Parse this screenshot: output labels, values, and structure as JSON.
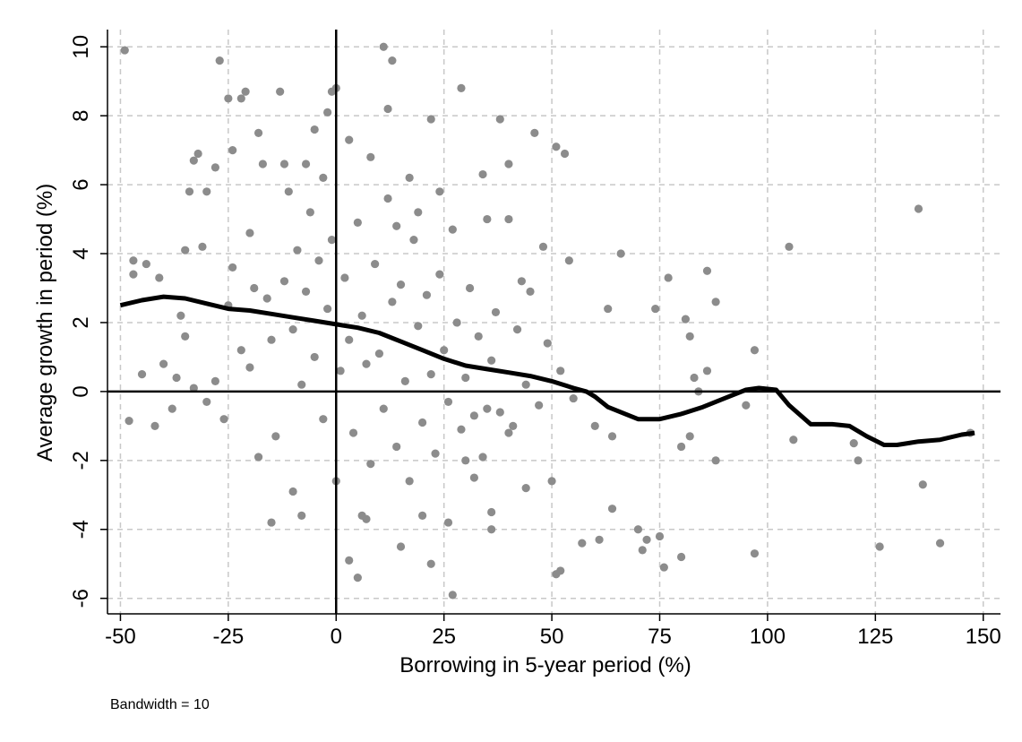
{
  "chart_data": {
    "type": "scatter",
    "x_label": "Borrowing in 5-year period (%)",
    "y_label": "Average growth in period (%)",
    "note": "Bandwidth = 10",
    "xlim": [
      -53,
      154
    ],
    "ylim": [
      -6.45,
      10.5
    ],
    "xticks": [
      -50,
      -25,
      0,
      25,
      50,
      75,
      100,
      125,
      150
    ],
    "yticks": [
      -6,
      -4,
      -2,
      0,
      2,
      4,
      6,
      8,
      10
    ],
    "grid": true,
    "xline": 0,
    "yline": 0,
    "points": {
      "color": "#8c8c8c",
      "x": [
        -49,
        -48,
        -47,
        -47,
        -45,
        -44,
        -42,
        -41,
        -38,
        -37,
        -36,
        -35,
        -34,
        -33,
        -32,
        -31,
        -30,
        -28,
        -27,
        -25,
        -24,
        -22,
        -21,
        -20,
        -18,
        -17,
        -16,
        -15,
        -13,
        -12,
        -10,
        -8,
        -7,
        -5,
        -2,
        -1,
        0,
        0,
        3,
        5,
        6,
        7,
        11,
        12,
        13,
        15,
        17,
        20,
        22,
        22,
        26,
        27,
        29,
        32,
        34,
        35,
        36,
        36,
        38,
        40,
        40,
        44,
        46,
        48,
        50,
        51,
        51,
        52,
        53,
        54,
        57,
        60,
        61,
        63,
        64,
        64,
        66,
        70,
        71,
        72,
        74,
        75,
        76,
        77,
        80,
        80,
        81,
        82,
        82,
        83,
        84,
        86,
        86,
        88,
        88,
        95,
        97,
        97,
        105,
        106,
        120,
        121,
        126,
        135,
        136,
        140,
        147,
        -25,
        -22,
        -20,
        -18,
        -15,
        -12,
        -10,
        -9,
        -8,
        -7,
        -6,
        -5,
        -4,
        -3,
        -2,
        -1,
        1,
        2,
        3,
        4,
        5,
        6,
        7,
        8,
        9,
        10,
        11,
        12,
        13,
        14,
        15,
        16,
        17,
        18,
        19,
        20,
        21,
        22,
        23,
        24,
        25,
        26,
        27,
        28,
        29,
        30,
        31,
        32,
        33,
        34,
        36,
        37,
        38,
        40,
        42,
        44,
        45,
        47,
        49,
        52,
        55,
        -30,
        -28,
        -35,
        -40,
        -33,
        -26,
        -24,
        -19,
        -14,
        -11,
        -3,
        3,
        8,
        14,
        19,
        24,
        30,
        35,
        41,
        43
      ],
      "y": [
        9.9,
        -0.85,
        3.8,
        3.4,
        0.5,
        3.7,
        -1.0,
        3.3,
        -0.5,
        0.4,
        2.2,
        1.6,
        5.8,
        6.7,
        6.9,
        4.2,
        5.8,
        6.5,
        9.6,
        8.5,
        7.0,
        8.5,
        8.7,
        4.6,
        7.5,
        6.6,
        2.7,
        -3.8,
        8.7,
        6.6,
        -2.9,
        -3.6,
        6.6,
        7.6,
        8.1,
        8.7,
        8.8,
        -2.6,
        -4.9,
        -5.4,
        -3.6,
        -3.7,
        10.0,
        8.2,
        9.6,
        -4.5,
        6.2,
        -3.6,
        -5.0,
        7.9,
        -3.8,
        -5.9,
        8.8,
        -2.5,
        6.3,
        5.0,
        -3.5,
        -4.0,
        7.9,
        6.6,
        5.0,
        -2.8,
        7.5,
        4.2,
        -2.6,
        7.1,
        -5.3,
        -5.2,
        6.9,
        3.8,
        -4.4,
        -1.0,
        -4.3,
        2.4,
        -3.4,
        -1.3,
        4.0,
        -4.0,
        -4.6,
        -4.3,
        2.4,
        -4.2,
        -5.1,
        3.3,
        -1.6,
        -4.8,
        2.1,
        -1.3,
        1.6,
        0.4,
        0.0,
        0.6,
        3.5,
        2.6,
        -2.0,
        -0.4,
        1.2,
        -4.7,
        4.2,
        -1.4,
        -1.5,
        -2.0,
        -4.5,
        5.3,
        -2.7,
        -4.4,
        -1.2,
        2.5,
        1.2,
        0.7,
        -1.9,
        1.5,
        3.2,
        1.8,
        4.1,
        0.2,
        2.9,
        5.2,
        1.0,
        3.8,
        -0.8,
        2.4,
        4.4,
        0.6,
        3.3,
        1.5,
        -1.2,
        4.9,
        2.2,
        0.8,
        -2.1,
        3.7,
        1.1,
        -0.5,
        5.6,
        2.6,
        -1.6,
        3.1,
        0.3,
        -2.6,
        4.4,
        1.9,
        -0.9,
        2.8,
        0.5,
        -1.8,
        3.4,
        1.2,
        -0.3,
        4.7,
        2.0,
        -1.1,
        0.4,
        3.0,
        -0.7,
        1.6,
        -1.9,
        0.9,
        2.3,
        -0.6,
        -1.2,
        1.8,
        0.2,
        2.9,
        -0.4,
        1.4,
        0.6,
        -0.2,
        -0.3,
        0.3,
        4.1,
        0.8,
        0.1,
        -0.8,
        3.6,
        3.0,
        -1.3,
        5.8,
        6.2,
        7.3,
        6.8,
        4.8,
        5.2,
        5.8,
        -2.0,
        -0.5,
        -1.0,
        3.2
      ]
    },
    "line": {
      "color": "#000000",
      "x": [
        -50,
        -45,
        -40,
        -35,
        -30,
        -25,
        -20,
        -15,
        -10,
        -5,
        0,
        5,
        10,
        15,
        20,
        25,
        30,
        35,
        40,
        45,
        50,
        55,
        58,
        60,
        63,
        67,
        70,
        75,
        80,
        85,
        90,
        95,
        98,
        102,
        105,
        110,
        115,
        119,
        123,
        127,
        130,
        135,
        140,
        145,
        148
      ],
      "y": [
        2.5,
        2.65,
        2.75,
        2.7,
        2.55,
        2.4,
        2.35,
        2.25,
        2.15,
        2.05,
        1.95,
        1.85,
        1.7,
        1.45,
        1.2,
        0.95,
        0.75,
        0.65,
        0.55,
        0.45,
        0.3,
        0.1,
        0,
        -0.15,
        -0.45,
        -0.65,
        -0.8,
        -0.8,
        -0.65,
        -0.45,
        -0.2,
        0.05,
        0.1,
        0.05,
        -0.4,
        -0.95,
        -0.95,
        -1.0,
        -1.3,
        -1.55,
        -1.55,
        -1.45,
        -1.4,
        -1.25,
        -1.2
      ]
    }
  }
}
